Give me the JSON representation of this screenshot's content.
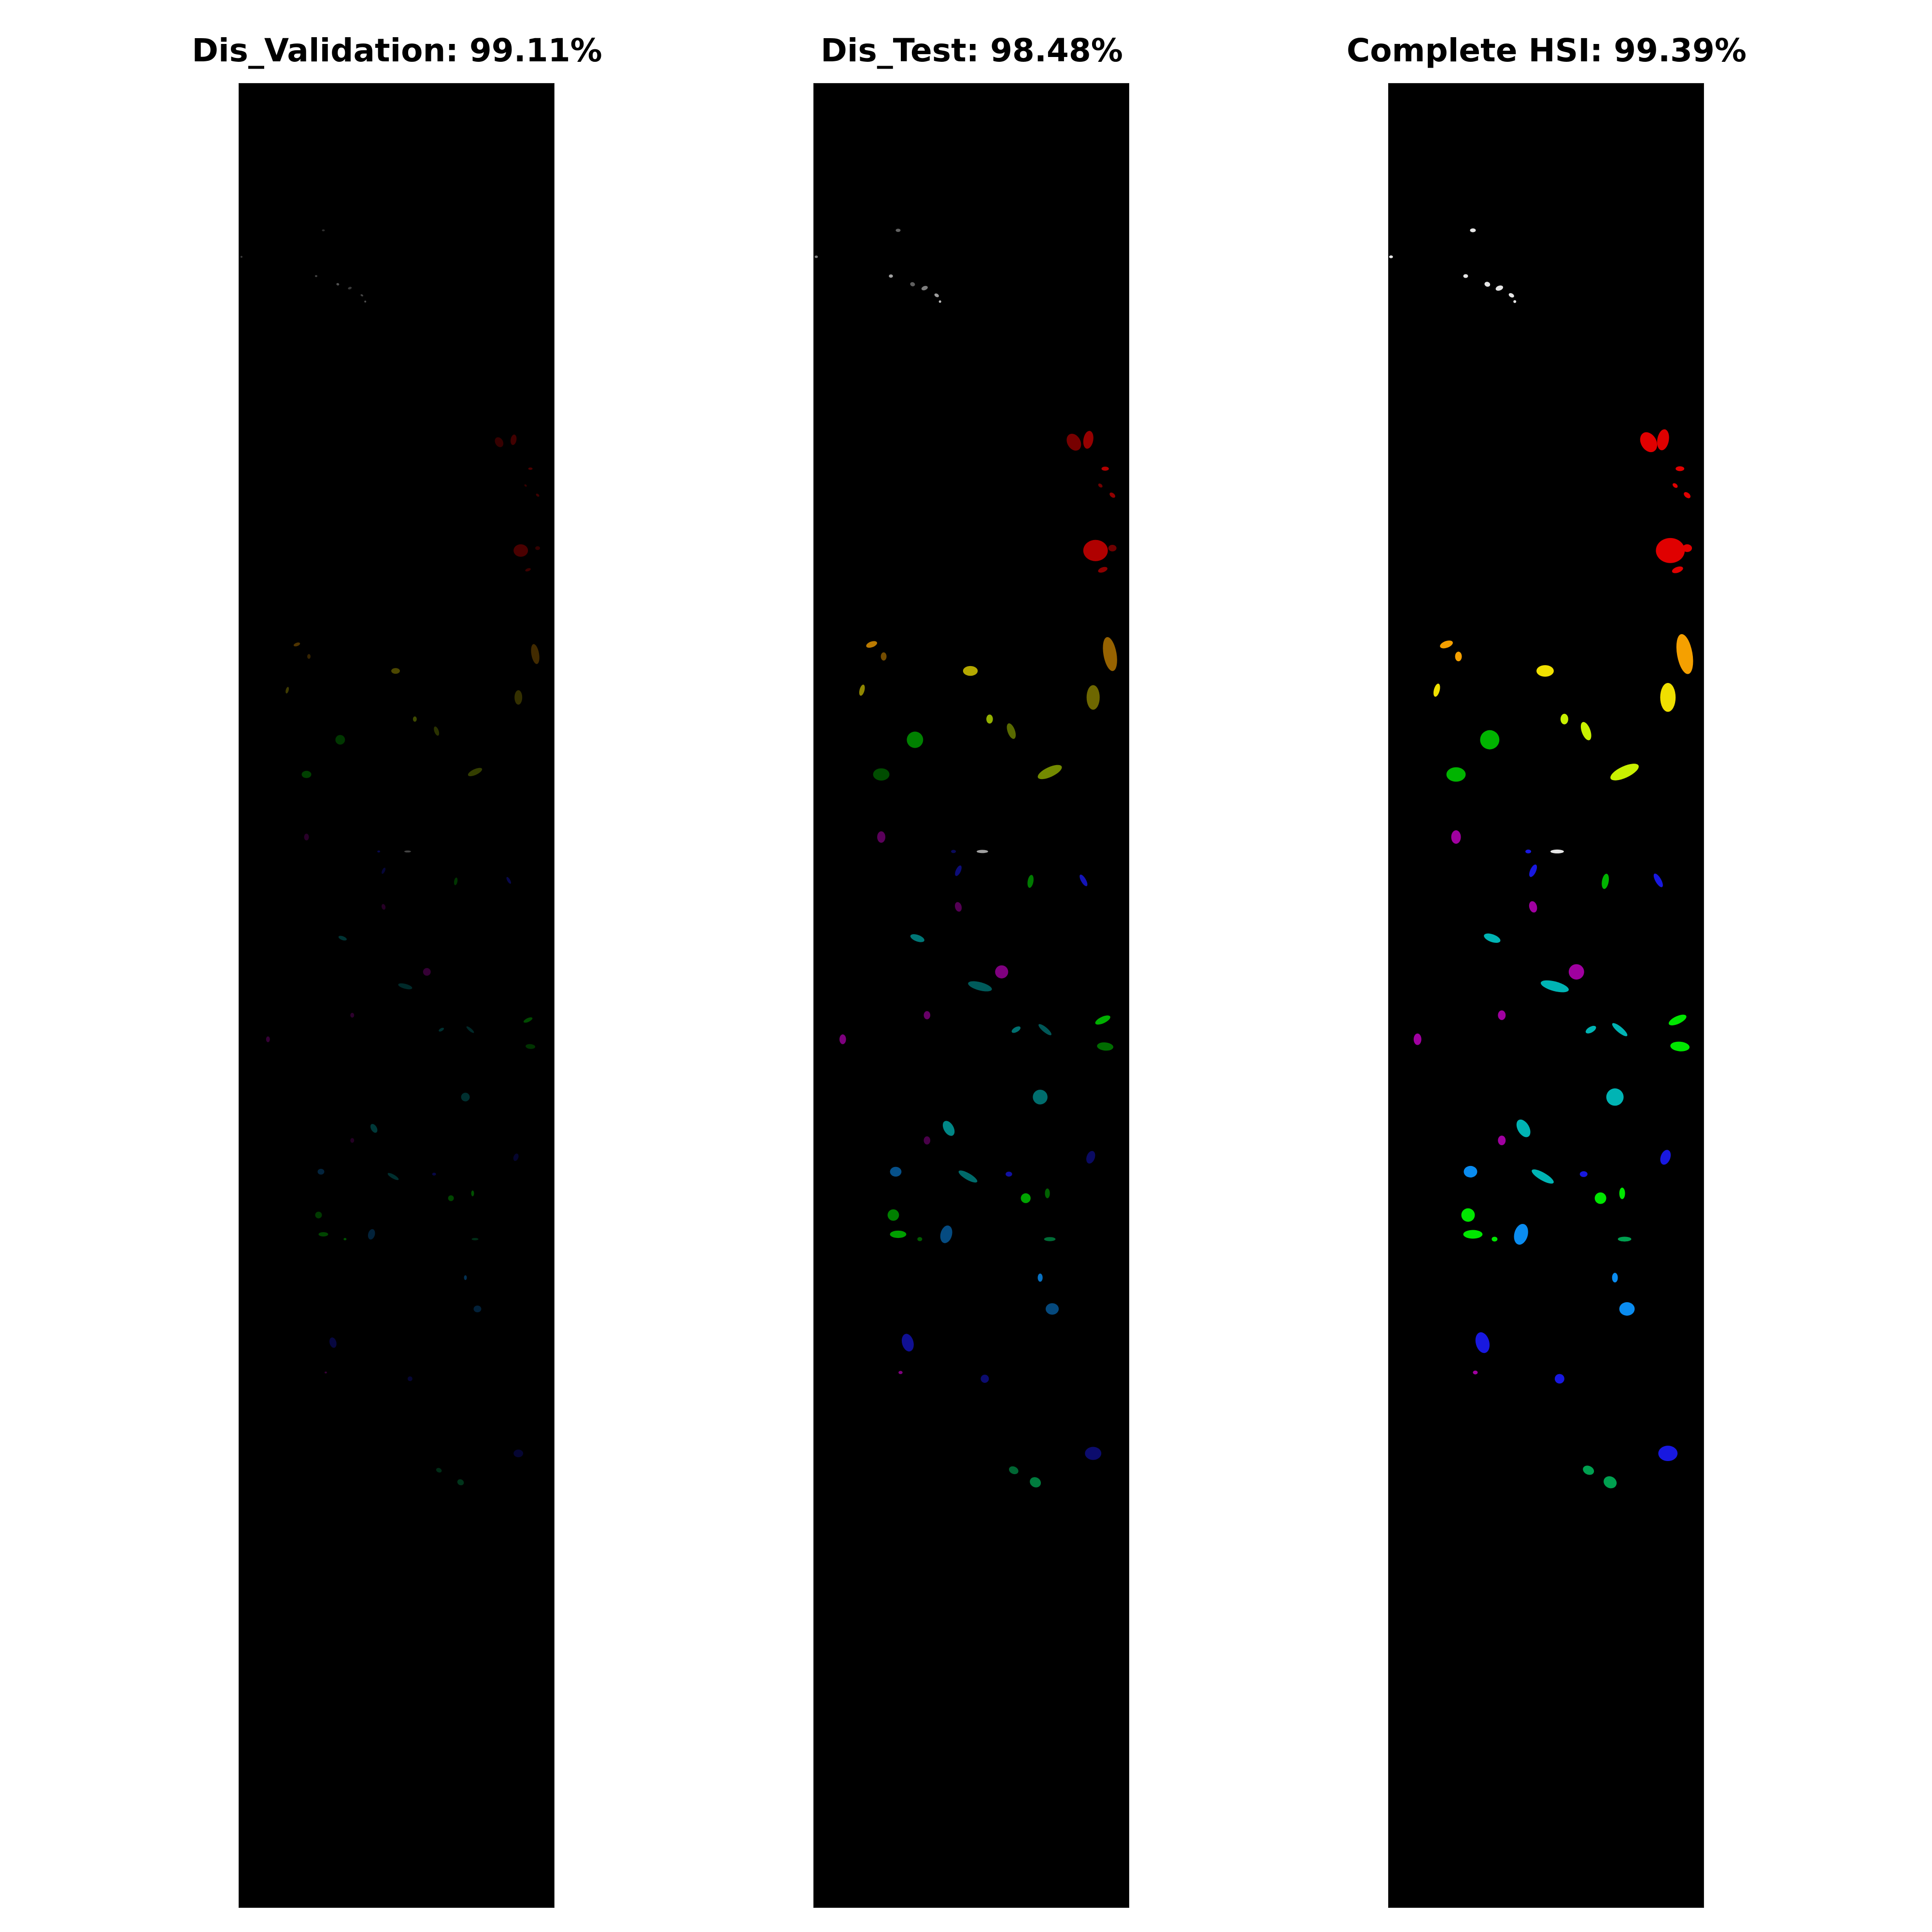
{
  "figure": {
    "panels": [
      {
        "title": "Dis_Validation: 99.11%",
        "style": "sparse"
      },
      {
        "title": "Dis_Test: 98.48%",
        "style": "dense"
      },
      {
        "title": "Complete HSI: 99.39%",
        "style": "solid"
      }
    ],
    "background_color": "#000000",
    "class_colors": {
      "white": "#e6e6e6",
      "red": "#e00000",
      "orange": "#f5a000",
      "yellow": "#f0e000",
      "lime": "#c8f000",
      "green": "#00b400",
      "bright_green": "#00e600",
      "sea_green": "#00a050",
      "purple": "#a000a0",
      "blue": "#1818e0",
      "azure": "#0a8cf0",
      "cyan": "#00b4b4"
    }
  }
}
